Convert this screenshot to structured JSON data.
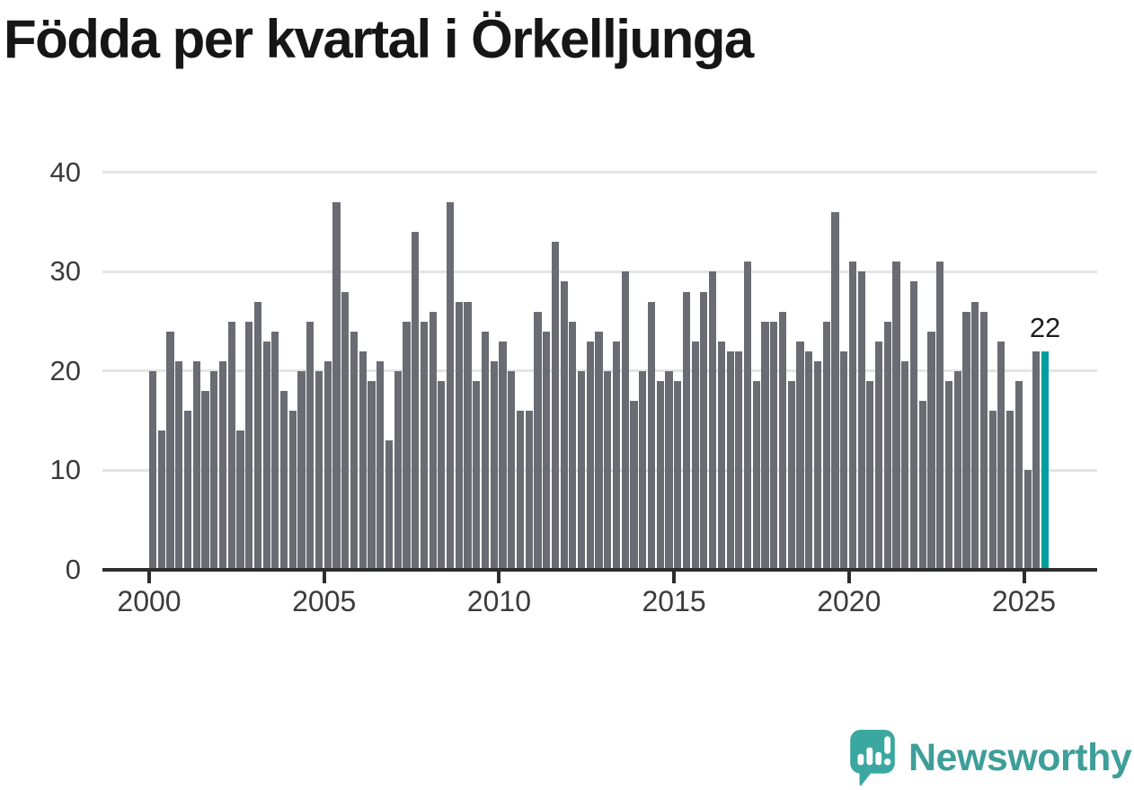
{
  "title": "Födda per kvartal i Örkelljunga",
  "chart_data": {
    "type": "bar",
    "title": "Födda per kvartal i Örkelljunga",
    "xlabel": "",
    "ylabel": "",
    "ylim": [
      0,
      40
    ],
    "grid": true,
    "legend": false,
    "y_tick_labels": [
      "0",
      "10",
      "20",
      "30",
      "40"
    ],
    "x_tick_labels": [
      "2000",
      "2005",
      "2010",
      "2015",
      "2020",
      "2025"
    ],
    "x_ticks_every_n_bars": 20,
    "categories": [
      "2000 Q1",
      "2000 Q2",
      "2000 Q3",
      "2000 Q4",
      "2001 Q1",
      "2001 Q2",
      "2001 Q3",
      "2001 Q4",
      "2002 Q1",
      "2002 Q2",
      "2002 Q3",
      "2002 Q4",
      "2003 Q1",
      "2003 Q2",
      "2003 Q3",
      "2003 Q4",
      "2004 Q1",
      "2004 Q2",
      "2004 Q3",
      "2004 Q4",
      "2005 Q1",
      "2005 Q2",
      "2005 Q3",
      "2005 Q4",
      "2006 Q1",
      "2006 Q2",
      "2006 Q3",
      "2006 Q4",
      "2007 Q1",
      "2007 Q2",
      "2007 Q3",
      "2007 Q4",
      "2008 Q1",
      "2008 Q2",
      "2008 Q3",
      "2008 Q4",
      "2009 Q1",
      "2009 Q2",
      "2009 Q3",
      "2009 Q4",
      "2010 Q1",
      "2010 Q2",
      "2010 Q3",
      "2010 Q4",
      "2011 Q1",
      "2011 Q2",
      "2011 Q3",
      "2011 Q4",
      "2012 Q1",
      "2012 Q2",
      "2012 Q3",
      "2012 Q4",
      "2013 Q1",
      "2013 Q2",
      "2013 Q3",
      "2013 Q4",
      "2014 Q1",
      "2014 Q2",
      "2014 Q3",
      "2014 Q4",
      "2015 Q1",
      "2015 Q2",
      "2015 Q3",
      "2015 Q4",
      "2016 Q1",
      "2016 Q2",
      "2016 Q3",
      "2016 Q4",
      "2017 Q1",
      "2017 Q2",
      "2017 Q3",
      "2017 Q4",
      "2018 Q1",
      "2018 Q2",
      "2018 Q3",
      "2018 Q4",
      "2019 Q1",
      "2019 Q2",
      "2019 Q3",
      "2019 Q4",
      "2020 Q1",
      "2020 Q2",
      "2020 Q3",
      "2020 Q4",
      "2021 Q1",
      "2021 Q2",
      "2021 Q3",
      "2021 Q4",
      "2022 Q1",
      "2022 Q2",
      "2022 Q3",
      "2022 Q4",
      "2023 Q1",
      "2023 Q2",
      "2023 Q3",
      "2023 Q4",
      "2024 Q1",
      "2024 Q2",
      "2024 Q3",
      "2024 Q4",
      "2025 Q1",
      "2025 Q2",
      "2025 Q3"
    ],
    "values": [
      20,
      14,
      24,
      21,
      16,
      21,
      18,
      20,
      21,
      25,
      14,
      25,
      27,
      23,
      24,
      18,
      16,
      20,
      25,
      20,
      21,
      37,
      28,
      24,
      22,
      19,
      21,
      13,
      20,
      25,
      34,
      25,
      26,
      19,
      37,
      27,
      27,
      19,
      24,
      21,
      23,
      20,
      16,
      16,
      26,
      24,
      33,
      29,
      25,
      20,
      23,
      24,
      20,
      23,
      30,
      17,
      20,
      27,
      19,
      20,
      19,
      28,
      23,
      28,
      30,
      23,
      22,
      22,
      31,
      19,
      25,
      25,
      26,
      19,
      23,
      22,
      21,
      25,
      36,
      22,
      31,
      30,
      19,
      23,
      25,
      31,
      21,
      29,
      17,
      24,
      31,
      19,
      20,
      26,
      27,
      26,
      16,
      23,
      16,
      19,
      10,
      22,
      22
    ],
    "highlight": {
      "index": 102,
      "label": "22",
      "category": "2025 Q3",
      "value": 22
    },
    "colors": {
      "bar": "#6B6B73",
      "highlight": "#009E9E",
      "grid": "#E4E4E4",
      "axis": "#2D2D2D",
      "tick_label": "#3B3B3B",
      "title": "#161616",
      "annotation": "#1D1D1D",
      "background": "#FFFFFF"
    }
  },
  "logo": {
    "text": "Newsworthy",
    "color": "#3E9E99",
    "icon": "newsworthy-speech-bubble-chart-icon"
  }
}
